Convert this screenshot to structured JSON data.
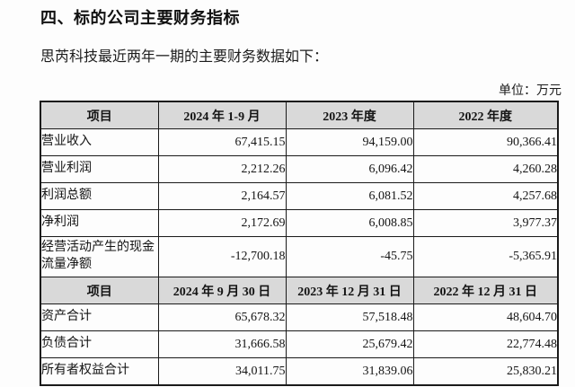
{
  "page": {
    "title": "四、标的公司主要财务指标",
    "subtitle": "思芮科技最近两年一期的主要财务数据如下：",
    "unit_label": "单位：万元"
  },
  "income_table": {
    "headers": [
      "项目",
      "2024 年 1-9 月",
      "2023 年度",
      "2022 年度"
    ],
    "rows": [
      {
        "label": "营业收入",
        "values": [
          "67,415.15",
          "94,159.00",
          "90,366.41"
        ]
      },
      {
        "label": "营业利润",
        "values": [
          "2,212.26",
          "6,096.42",
          "4,260.28"
        ]
      },
      {
        "label": "利润总额",
        "values": [
          "2,164.57",
          "6,081.52",
          "4,257.68"
        ]
      },
      {
        "label": "净利润",
        "values": [
          "2,172.69",
          "6,008.85",
          "3,977.37"
        ]
      },
      {
        "label": "经营活动产生的现金流量净额",
        "values": [
          "-12,700.18",
          "-45.75",
          "-5,365.91"
        ]
      }
    ]
  },
  "balance_table": {
    "headers": [
      "项目",
      "2024 年 9 月 30 日",
      "2023 年 12 月 31 日",
      "2022 年 12 月 31 日"
    ],
    "rows": [
      {
        "label": "资产合计",
        "values": [
          "65,678.32",
          "57,518.48",
          "48,604.70"
        ]
      },
      {
        "label": "负债合计",
        "values": [
          "31,666.58",
          "25,679.42",
          "22,774.48"
        ]
      },
      {
        "label": "所有者权益合计",
        "values": [
          "34,011.75",
          "31,839.06",
          "25,830.21"
        ]
      }
    ]
  }
}
